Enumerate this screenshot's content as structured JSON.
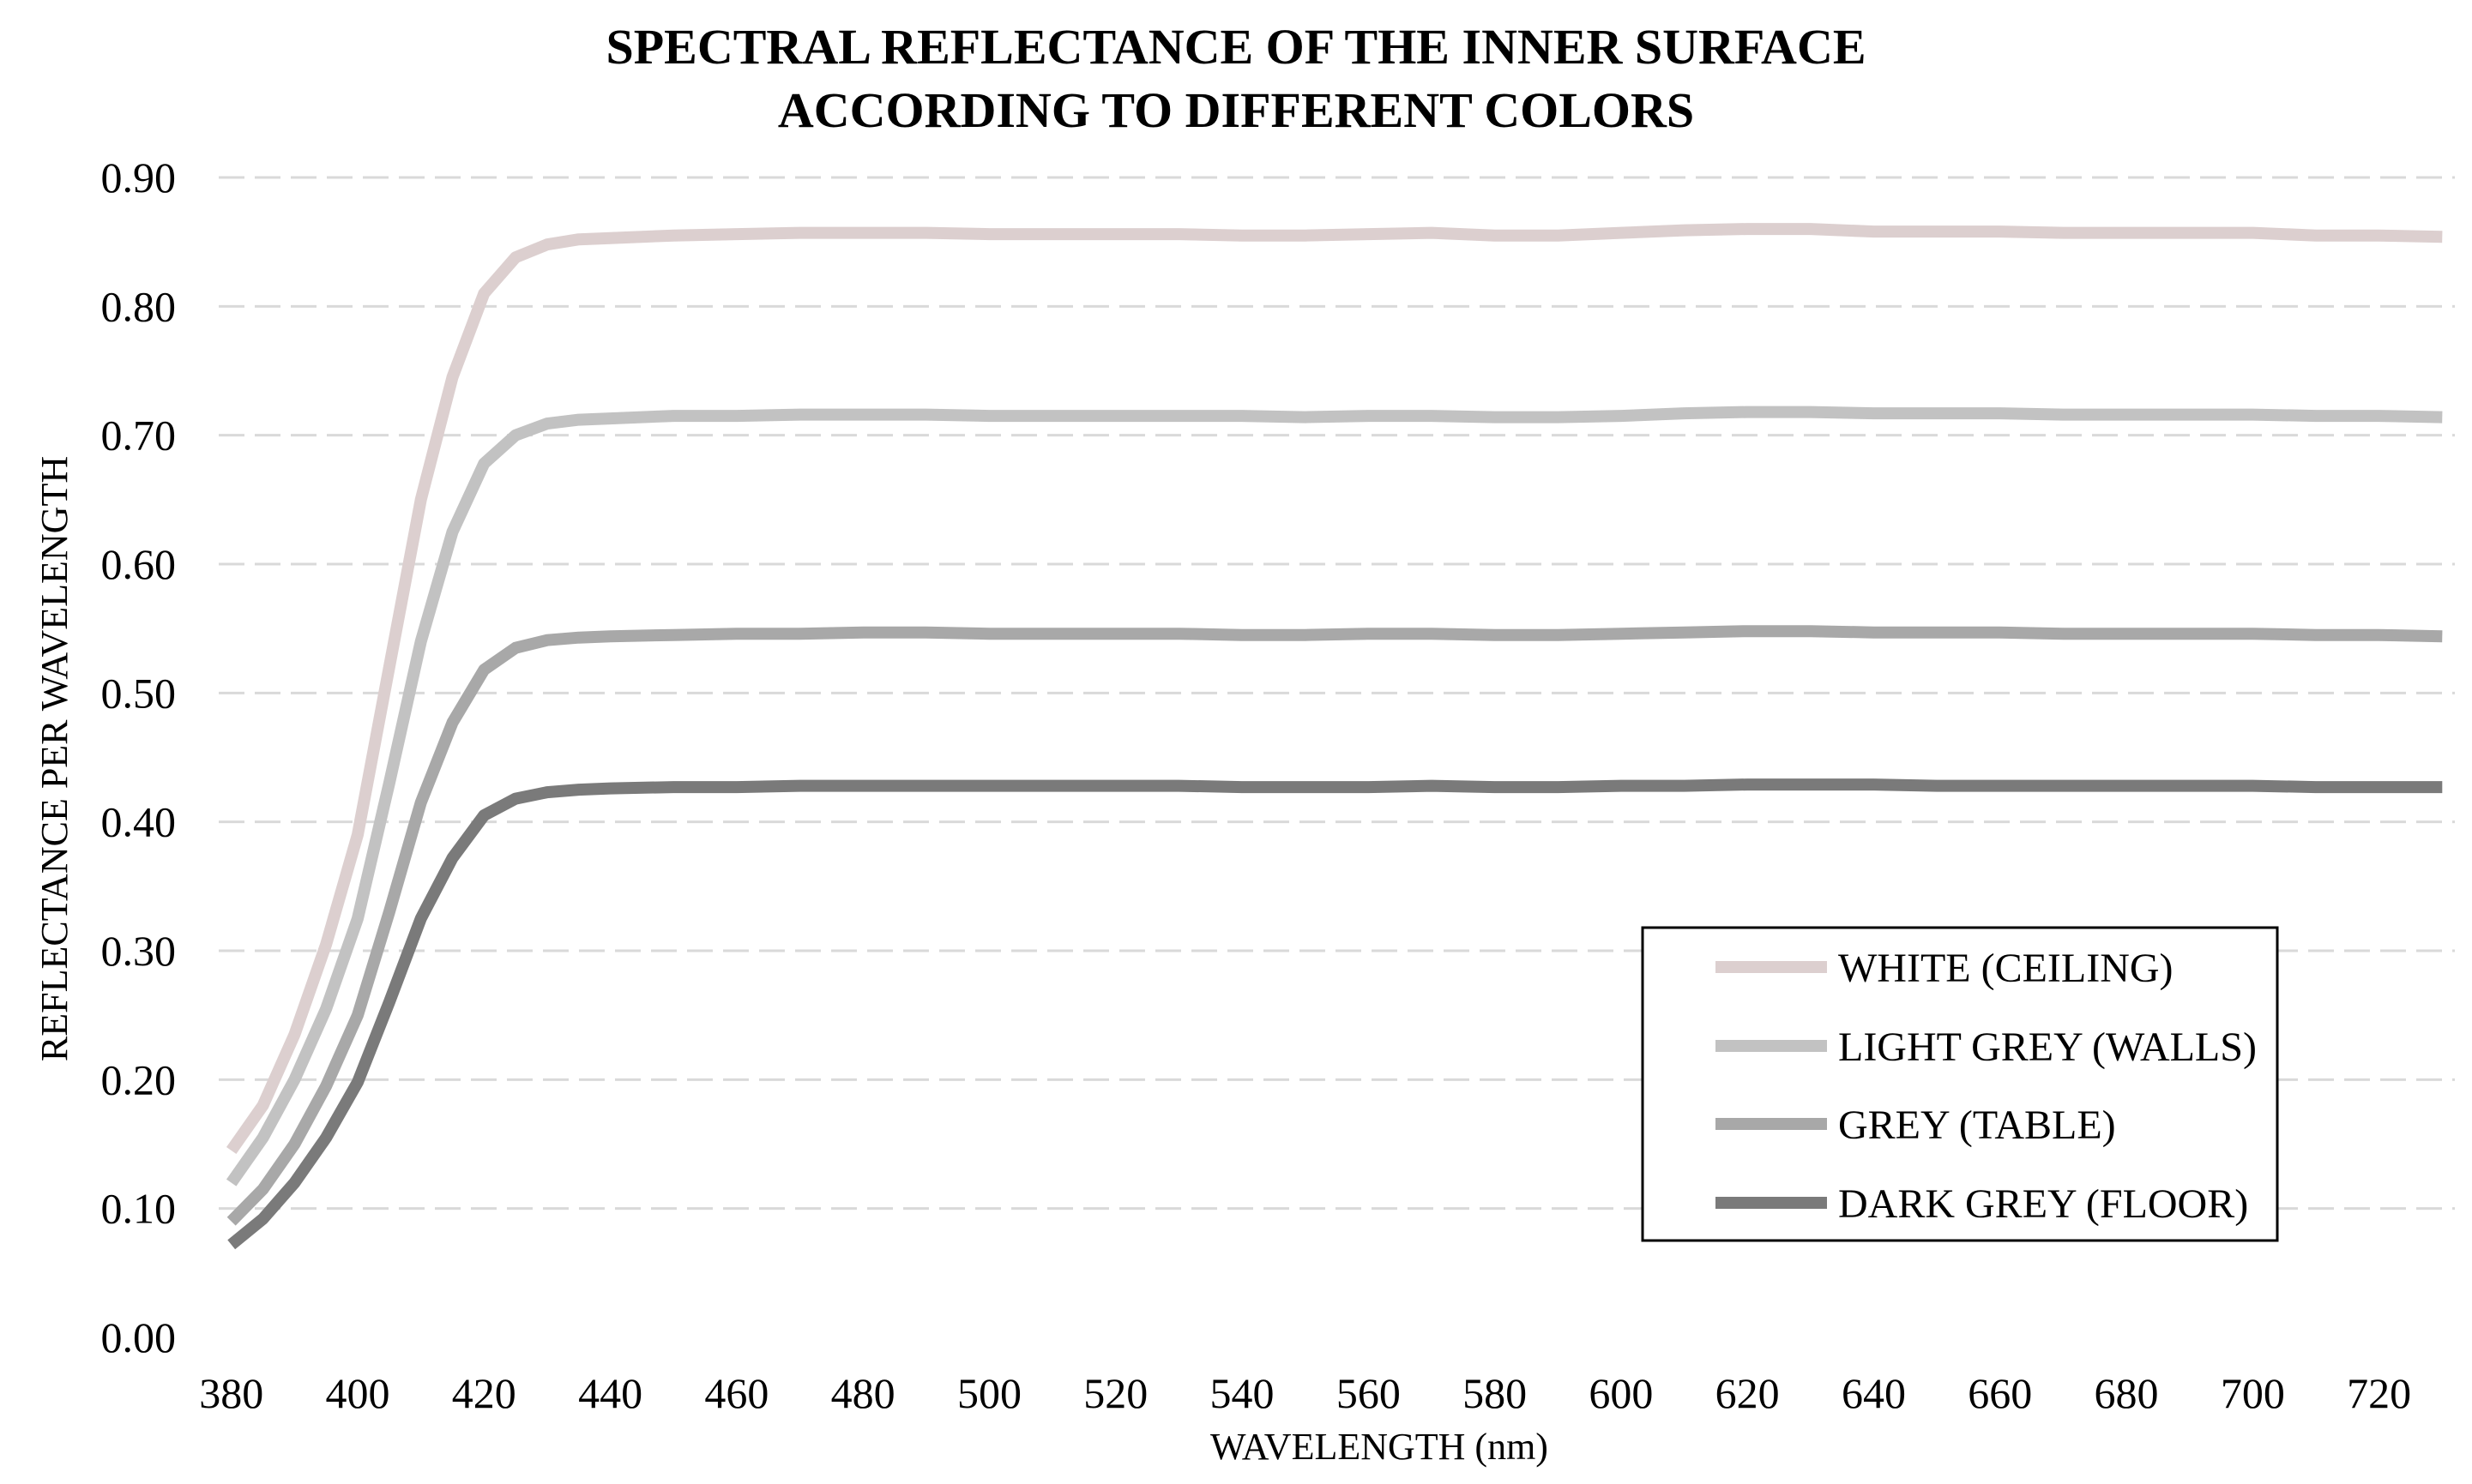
{
  "chart_data": {
    "type": "line",
    "title": [
      "SPECTRAL REFLECTANCE OF THE INNER SURFACE",
      "ACCORDING TO DIFFERENT COLORS"
    ],
    "xlabel": "WAVELENGTH (nm)",
    "ylabel": "REFLECTANCE PER WAVELENGTH",
    "xlim": [
      378,
      732
    ],
    "ylim": [
      0,
      0.9
    ],
    "xticks": [
      "380",
      "400",
      "420",
      "440",
      "460",
      "480",
      "500",
      "520",
      "540",
      "560",
      "580",
      "600",
      "620",
      "640",
      "660",
      "680",
      "700",
      "720"
    ],
    "yticks": [
      "0.00",
      "0.10",
      "0.20",
      "0.30",
      "0.40",
      "0.50",
      "0.60",
      "0.70",
      "0.80",
      "0.90"
    ],
    "grid": "horizontal dashed",
    "legend_position": "bottom-right",
    "x": [
      380,
      385,
      390,
      395,
      400,
      405,
      410,
      415,
      420,
      425,
      430,
      435,
      440,
      450,
      460,
      470,
      480,
      490,
      500,
      510,
      520,
      530,
      540,
      550,
      560,
      570,
      580,
      590,
      600,
      610,
      620,
      630,
      640,
      650,
      660,
      670,
      680,
      690,
      700,
      710,
      720,
      730
    ],
    "series": [
      {
        "name": "WHITE (CEILING)",
        "color": "#dccfcf",
        "values": [
          0.145,
          0.18,
          0.235,
          0.305,
          0.39,
          0.52,
          0.65,
          0.745,
          0.81,
          0.838,
          0.848,
          0.852,
          0.853,
          0.855,
          0.856,
          0.857,
          0.857,
          0.857,
          0.856,
          0.856,
          0.856,
          0.856,
          0.855,
          0.855,
          0.856,
          0.857,
          0.855,
          0.855,
          0.857,
          0.859,
          0.86,
          0.86,
          0.858,
          0.858,
          0.858,
          0.857,
          0.857,
          0.857,
          0.857,
          0.855,
          0.855,
          0.854
        ]
      },
      {
        "name": "LIGHT GREY (WALLS)",
        "color": "#c2c2c2",
        "values": [
          0.12,
          0.155,
          0.2,
          0.255,
          0.325,
          0.43,
          0.54,
          0.625,
          0.678,
          0.7,
          0.709,
          0.712,
          0.713,
          0.715,
          0.715,
          0.716,
          0.716,
          0.716,
          0.715,
          0.715,
          0.715,
          0.715,
          0.715,
          0.714,
          0.715,
          0.715,
          0.714,
          0.714,
          0.715,
          0.717,
          0.718,
          0.718,
          0.717,
          0.717,
          0.717,
          0.716,
          0.716,
          0.716,
          0.716,
          0.715,
          0.715,
          0.714
        ]
      },
      {
        "name": "GREY (TABLE)",
        "color": "#a8a8a8",
        "values": [
          0.09,
          0.115,
          0.15,
          0.195,
          0.25,
          0.33,
          0.415,
          0.477,
          0.518,
          0.535,
          0.541,
          0.543,
          0.544,
          0.545,
          0.546,
          0.546,
          0.547,
          0.547,
          0.546,
          0.546,
          0.546,
          0.546,
          0.545,
          0.545,
          0.546,
          0.546,
          0.545,
          0.545,
          0.546,
          0.547,
          0.548,
          0.548,
          0.547,
          0.547,
          0.547,
          0.546,
          0.546,
          0.546,
          0.546,
          0.545,
          0.545,
          0.544
        ]
      },
      {
        "name": "DARK GREY (FLOOR)",
        "color": "#7a7a7a",
        "values": [
          0.072,
          0.092,
          0.12,
          0.155,
          0.198,
          0.26,
          0.325,
          0.372,
          0.405,
          0.418,
          0.423,
          0.425,
          0.426,
          0.427,
          0.427,
          0.428,
          0.428,
          0.428,
          0.428,
          0.428,
          0.428,
          0.428,
          0.427,
          0.427,
          0.427,
          0.428,
          0.427,
          0.427,
          0.428,
          0.428,
          0.429,
          0.429,
          0.429,
          0.428,
          0.428,
          0.428,
          0.428,
          0.428,
          0.428,
          0.427,
          0.427,
          0.427
        ]
      }
    ]
  }
}
